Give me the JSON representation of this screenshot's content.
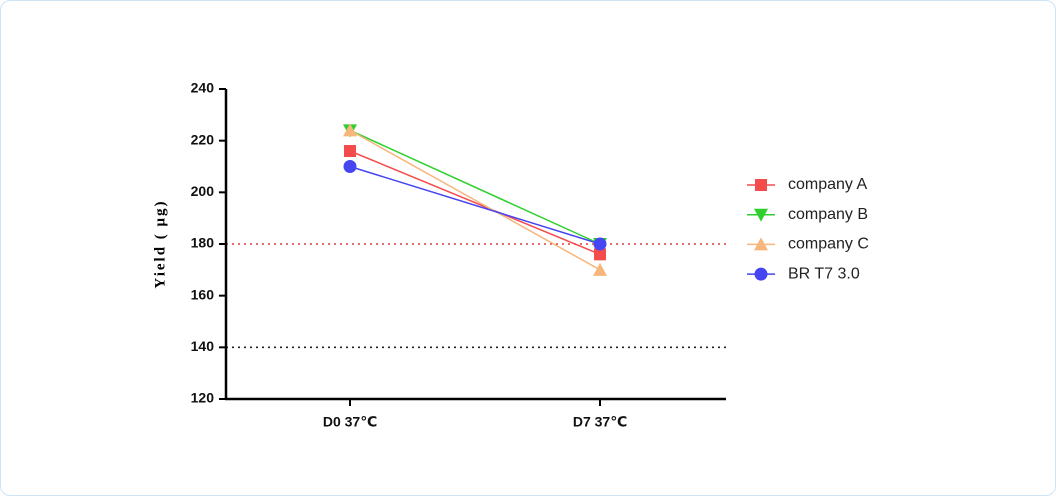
{
  "chart_data": {
    "type": "line",
    "y_label": "Yield ( μg)",
    "categories": [
      "D0 37℃",
      "D7 37℃"
    ],
    "series": [
      {
        "name": "company A",
        "color": "#f44b4b",
        "marker": "square",
        "values": [
          216,
          176
        ]
      },
      {
        "name": "company B",
        "color": "#2fcf2f",
        "marker": "triangle-down",
        "values": [
          224,
          180
        ]
      },
      {
        "name": "company C",
        "color": "#f6b67c",
        "marker": "triangle-up",
        "values": [
          224,
          170
        ]
      },
      {
        "name": "BR T7 3.0",
        "color": "#4545f2",
        "marker": "circle",
        "values": [
          210,
          180
        ]
      }
    ],
    "ylim": [
      120,
      240
    ],
    "yticks": [
      120,
      140,
      160,
      180,
      200,
      220,
      240
    ],
    "reference_lines": [
      {
        "value": 180,
        "color": "#e53935"
      },
      {
        "value": 140,
        "color": "#222222"
      }
    ],
    "legend": "right"
  }
}
